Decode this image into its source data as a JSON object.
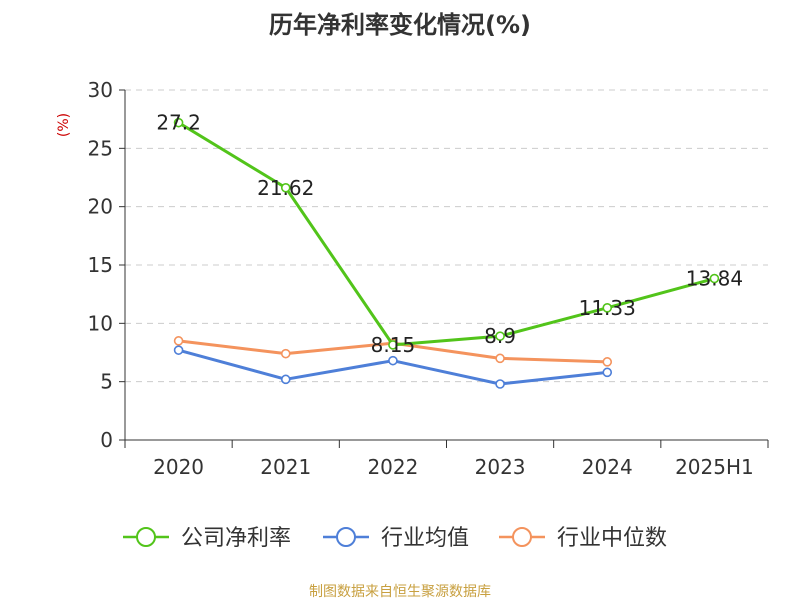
{
  "chart_data": {
    "type": "line",
    "title": "历年净利率变化情况(%)",
    "ylabel": "(%)",
    "xlabel": "",
    "categories": [
      "2020",
      "2021",
      "2022",
      "2023",
      "2024",
      "2025H1"
    ],
    "ylim": [
      0,
      30
    ],
    "yticks": [
      0,
      5,
      10,
      15,
      20,
      25,
      30
    ],
    "grid": true,
    "legend_position": "bottom",
    "series": [
      {
        "name": "公司净利率",
        "color": "#52c41a",
        "values": [
          27.2,
          21.62,
          8.15,
          8.9,
          11.33,
          13.84
        ],
        "labels": [
          "27.2",
          "21.62",
          "8.15",
          "8.9",
          "11.33",
          "13.84"
        ]
      },
      {
        "name": "行业均值",
        "color": "#4e7fd8",
        "values": [
          7.7,
          5.2,
          6.8,
          4.8,
          5.8,
          null
        ]
      },
      {
        "name": "行业中位数",
        "color": "#f4935d",
        "values": [
          8.5,
          7.4,
          8.3,
          7.0,
          6.7,
          null
        ]
      }
    ],
    "source": "制图数据来自恒生聚源数据库"
  },
  "colors": {
    "title": "#333333",
    "axis": "#333333",
    "grid": "#cccccc",
    "ylabel": "#cc0000",
    "source": "#c8a040"
  }
}
